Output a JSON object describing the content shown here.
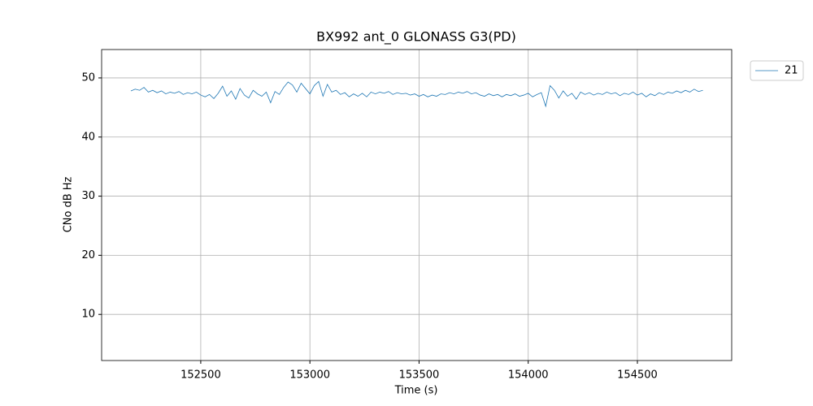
{
  "chart_data": {
    "type": "line",
    "title": "BX992 ant_0 GLONASS G3(PD)",
    "xlabel": "Time (s)",
    "ylabel": "CNo dB Hz",
    "x": [
      152180,
      152200,
      152220,
      152240,
      152260,
      152280,
      152300,
      152320,
      152340,
      152360,
      152380,
      152400,
      152420,
      152440,
      152460,
      152480,
      152500,
      152520,
      152540,
      152560,
      152580,
      152600,
      152620,
      152640,
      152660,
      152680,
      152700,
      152720,
      152740,
      152760,
      152780,
      152800,
      152820,
      152840,
      152860,
      152880,
      152900,
      152920,
      152940,
      152960,
      152980,
      153000,
      153020,
      153040,
      153060,
      153080,
      153100,
      153120,
      153140,
      153160,
      153180,
      153200,
      153220,
      153240,
      153260,
      153280,
      153300,
      153320,
      153340,
      153360,
      153380,
      153400,
      153420,
      153440,
      153460,
      153480,
      153500,
      153520,
      153540,
      153560,
      153580,
      153600,
      153620,
      153640,
      153660,
      153680,
      153700,
      153720,
      153740,
      153760,
      153780,
      153800,
      153820,
      153840,
      153860,
      153880,
      153900,
      153920,
      153940,
      153960,
      153980,
      154000,
      154020,
      154040,
      154060,
      154080,
      154100,
      154120,
      154140,
      154160,
      154180,
      154200,
      154220,
      154240,
      154260,
      154280,
      154300,
      154320,
      154340,
      154360,
      154380,
      154400,
      154420,
      154440,
      154460,
      154480,
      154500,
      154520,
      154540,
      154560,
      154580,
      154600,
      154620,
      154640,
      154660,
      154680,
      154700,
      154720,
      154740,
      154760,
      154780,
      154800
    ],
    "series": [
      {
        "name": "21",
        "color": "#1f77b4",
        "values": [
          47.8,
          48.1,
          47.9,
          48.4,
          47.6,
          47.9,
          47.5,
          47.8,
          47.3,
          47.6,
          47.4,
          47.7,
          47.2,
          47.5,
          47.3,
          47.6,
          47.1,
          46.8,
          47.2,
          46.5,
          47.4,
          48.6,
          46.9,
          47.8,
          46.4,
          48.2,
          47.1,
          46.6,
          47.9,
          47.3,
          46.9,
          47.6,
          45.8,
          47.7,
          47.2,
          48.4,
          49.3,
          48.8,
          47.6,
          49.1,
          48.2,
          47.3,
          48.7,
          49.4,
          46.9,
          48.9,
          47.6,
          47.9,
          47.2,
          47.5,
          46.8,
          47.3,
          46.9,
          47.4,
          46.8,
          47.6,
          47.3,
          47.6,
          47.4,
          47.7,
          47.2,
          47.5,
          47.3,
          47.4,
          47.1,
          47.3,
          46.9,
          47.2,
          46.8,
          47.1,
          46.9,
          47.3,
          47.2,
          47.5,
          47.3,
          47.6,
          47.4,
          47.7,
          47.3,
          47.5,
          47.1,
          46.9,
          47.3,
          47.0,
          47.2,
          46.8,
          47.2,
          47.0,
          47.3,
          46.9,
          47.1,
          47.4,
          46.8,
          47.2,
          47.5,
          45.2,
          48.7,
          47.9,
          46.6,
          47.8,
          46.9,
          47.4,
          46.4,
          47.6,
          47.2,
          47.5,
          47.1,
          47.4,
          47.2,
          47.6,
          47.3,
          47.5,
          47.0,
          47.4,
          47.2,
          47.6,
          47.1,
          47.4,
          46.8,
          47.3,
          47.0,
          47.5,
          47.2,
          47.6,
          47.4,
          47.8,
          47.5,
          47.9,
          47.6,
          48.1,
          47.7,
          47.9
        ]
      }
    ],
    "xlim": [
      152046,
      154932
    ],
    "ylim": [
      2.2,
      54.8
    ],
    "xticks": [
      152500,
      153000,
      153500,
      154000,
      154500
    ],
    "yticks": [
      10,
      20,
      30,
      40,
      50
    ],
    "grid": true,
    "legend": "upper right outside"
  }
}
